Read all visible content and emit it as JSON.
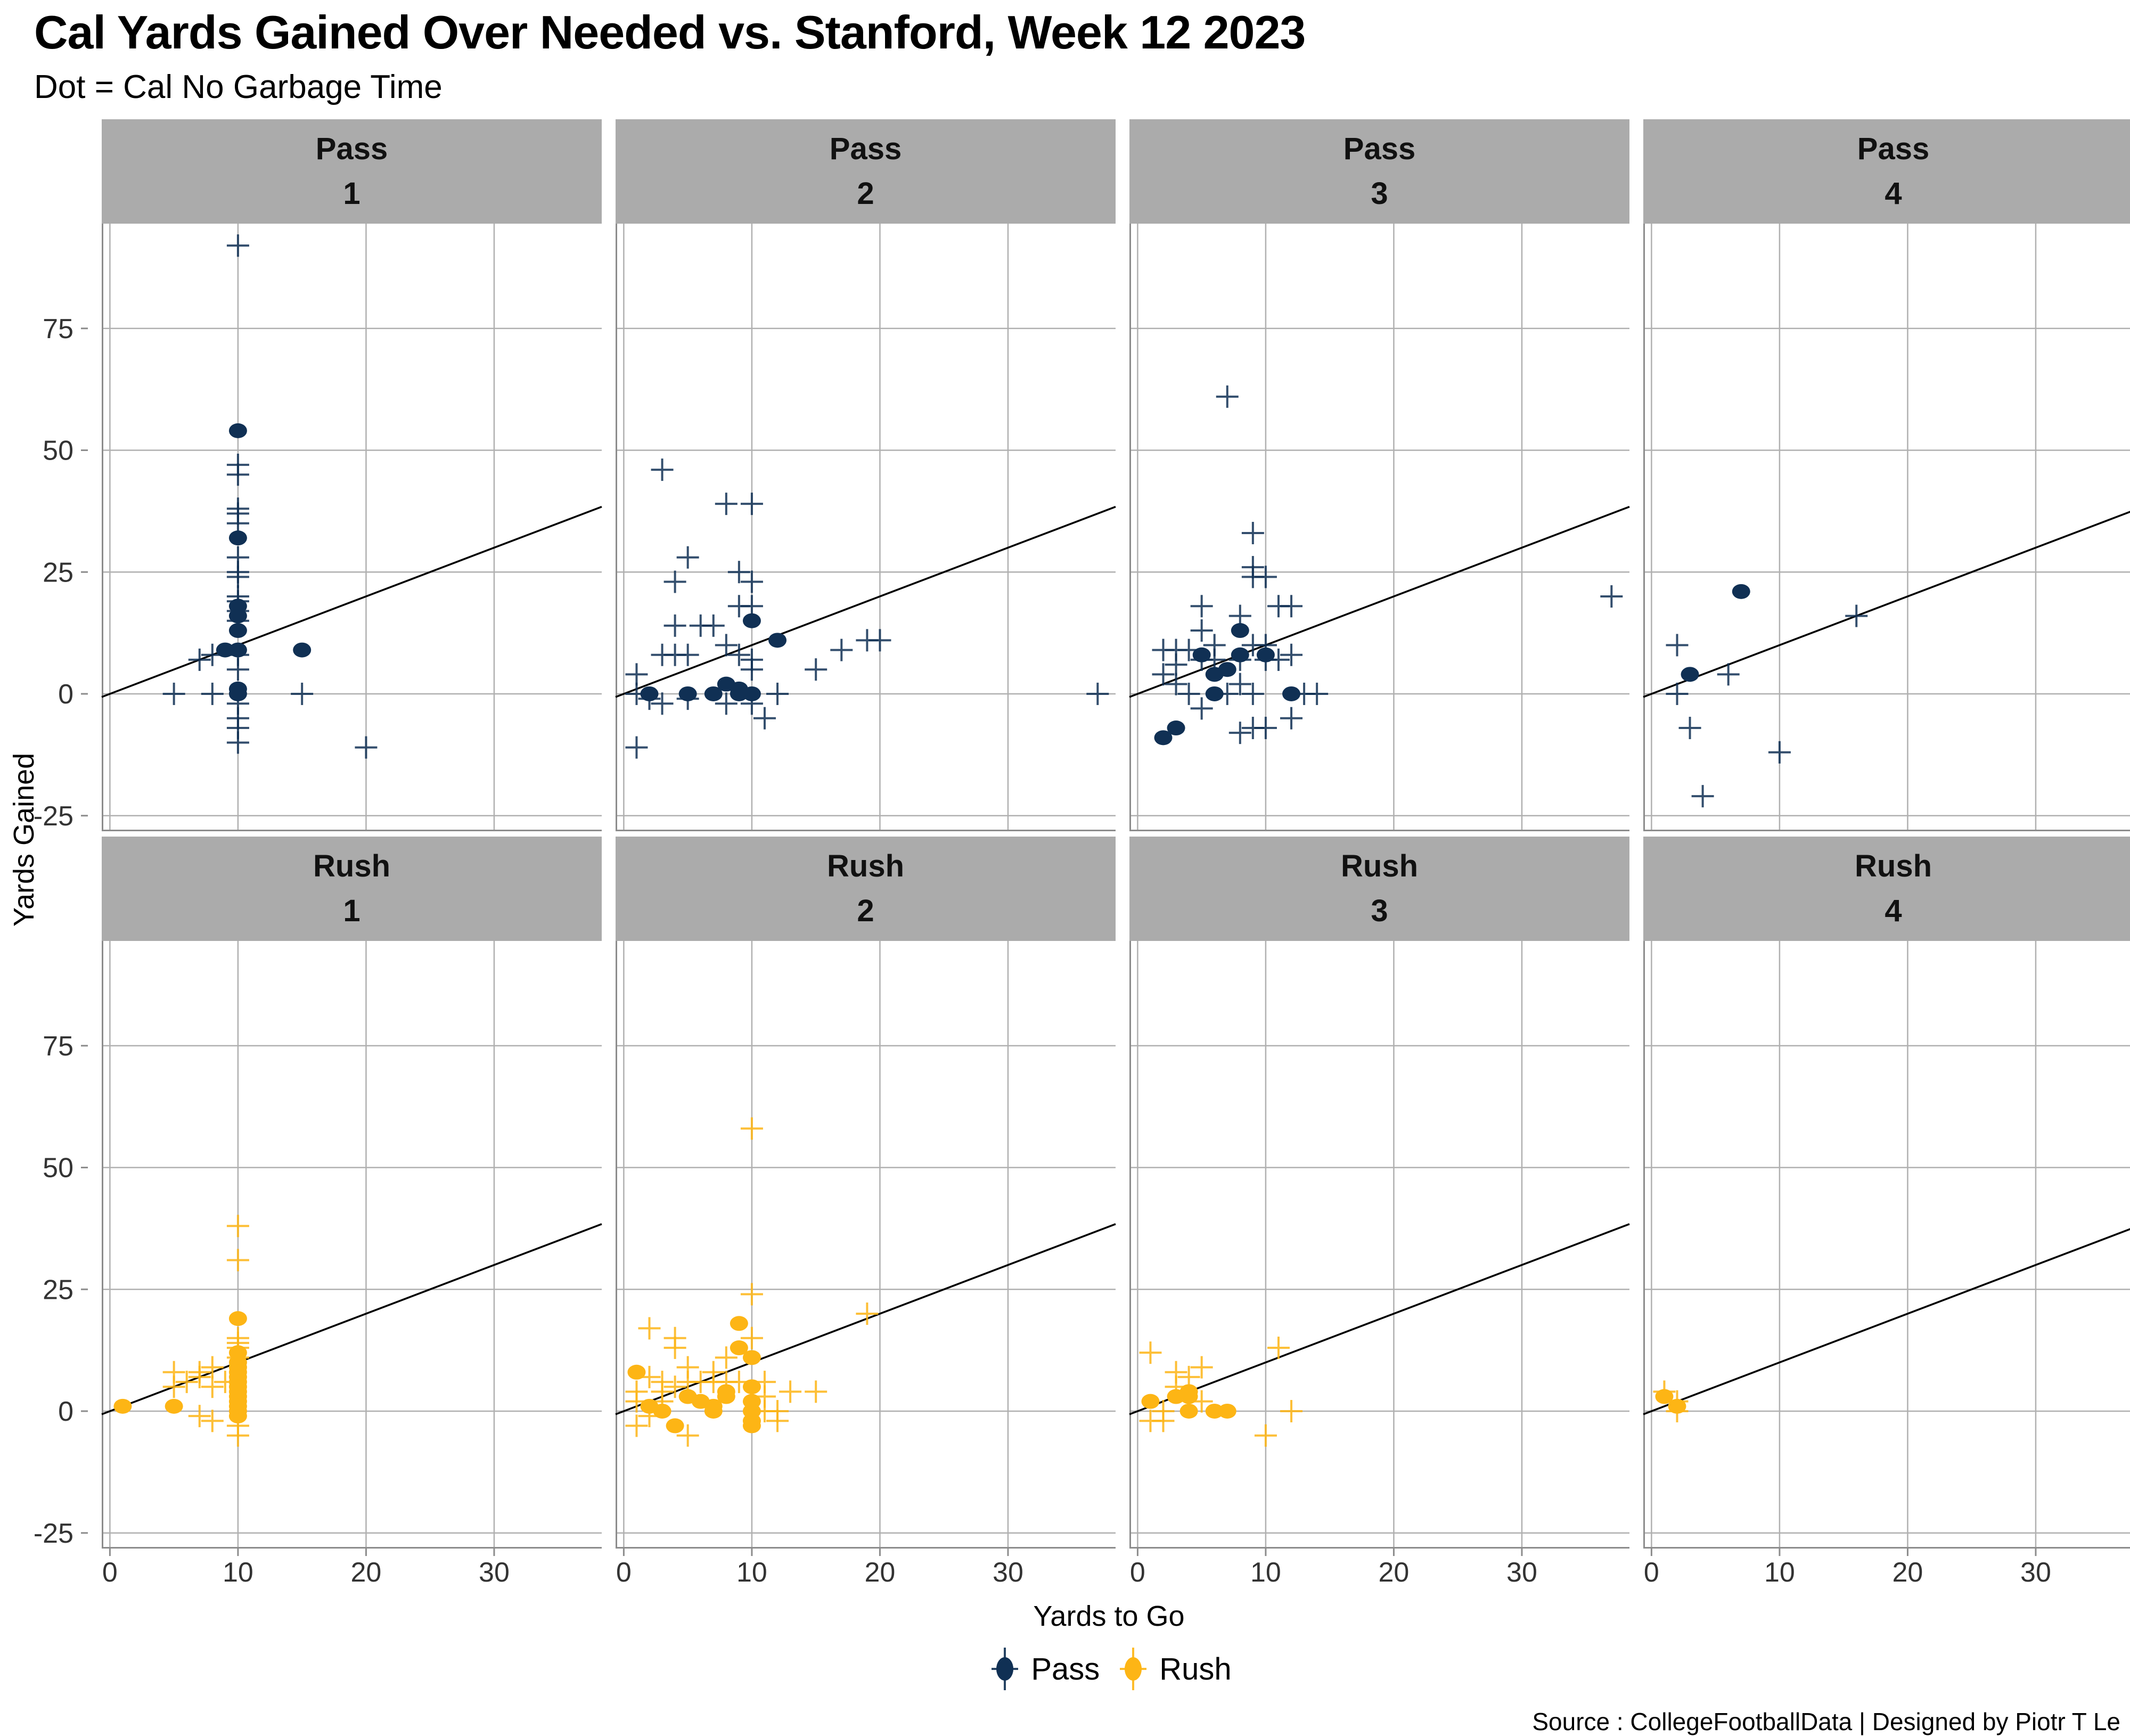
{
  "header": {
    "title": "Cal Yards Gained Over Needed vs. Stanford, Week 12 2023",
    "subtitle": "Dot = Cal No Garbage Time"
  },
  "source_credit": "Source : CollegeFootballData | Designed by Piotr T Le",
  "legend": {
    "items": [
      {
        "label": "Pass",
        "color": "#103054"
      },
      {
        "label": "Rush",
        "color": "#FDB515"
      }
    ]
  },
  "colors": {
    "pass": "#103054",
    "rush": "#FDB515",
    "strip_bg": "#ABABAB",
    "grid": "#B0B0B0",
    "axis_line": "#8C8C8C",
    "reference_line": "#000000",
    "tick_label": "#333333"
  },
  "chart_data": {
    "type": "scatter",
    "title": "Cal Yards Gained Over Needed vs. Stanford, Week 12 2023",
    "subtitle": "Dot = Cal No Garbage Time",
    "xlabel": "Yards to Go",
    "ylabel": "Yards Gained",
    "x_ticks": [
      0,
      10,
      20,
      30
    ],
    "y_ticks": [
      -25,
      0,
      25,
      50,
      75
    ],
    "xlim": [
      -0.64,
      38.4
    ],
    "ylim": [
      -28.2,
      96.5
    ],
    "grid": true,
    "legend_position": "bottom",
    "reference_line": "y = x (yards gained = yards to go)",
    "marker_note": "filled dot = Cal no-garbage-time play, cross = other play",
    "facet_rows": [
      "Pass",
      "Rush"
    ],
    "facet_cols": [
      "1",
      "2",
      "3",
      "4"
    ],
    "facets": [
      {
        "row": "Pass",
        "col": "1",
        "dots": [
          [
            10,
            54
          ],
          [
            10,
            32
          ],
          [
            10,
            18
          ],
          [
            10,
            16
          ],
          [
            10,
            13
          ],
          [
            9,
            9
          ],
          [
            10,
            9
          ],
          [
            15,
            9
          ],
          [
            10,
            1
          ],
          [
            10,
            0
          ]
        ],
        "crosses": [
          [
            10,
            92
          ],
          [
            10,
            47
          ],
          [
            10,
            45
          ],
          [
            10,
            38
          ],
          [
            10,
            37
          ],
          [
            10,
            35
          ],
          [
            10,
            28
          ],
          [
            10,
            25
          ],
          [
            10,
            24
          ],
          [
            10,
            20
          ],
          [
            10,
            19
          ],
          [
            10,
            17
          ],
          [
            10,
            15
          ],
          [
            7,
            7
          ],
          [
            8,
            8
          ],
          [
            10,
            8
          ],
          [
            10,
            5
          ],
          [
            5,
            0
          ],
          [
            8,
            0
          ],
          [
            10,
            -2
          ],
          [
            15,
            0
          ],
          [
            10,
            -5
          ],
          [
            10,
            -7
          ],
          [
            10,
            -10
          ],
          [
            20,
            -11
          ]
        ]
      },
      {
        "row": "Pass",
        "col": "2",
        "dots": [
          [
            10,
            15
          ],
          [
            12,
            11
          ],
          [
            8,
            2
          ],
          [
            9,
            1
          ],
          [
            2,
            0
          ],
          [
            5,
            0
          ],
          [
            7,
            0
          ],
          [
            9,
            0
          ],
          [
            10,
            0
          ]
        ],
        "crosses": [
          [
            3,
            46
          ],
          [
            8,
            39
          ],
          [
            10,
            39
          ],
          [
            5,
            28
          ],
          [
            9,
            25
          ],
          [
            4,
            23
          ],
          [
            10,
            23
          ],
          [
            9,
            18
          ],
          [
            10,
            18
          ],
          [
            4,
            14
          ],
          [
            6,
            14
          ],
          [
            7,
            14
          ],
          [
            8,
            10
          ],
          [
            3,
            8
          ],
          [
            4,
            8
          ],
          [
            5,
            8
          ],
          [
            9,
            8
          ],
          [
            10,
            7
          ],
          [
            10,
            5
          ],
          [
            1,
            4
          ],
          [
            15,
            5
          ],
          [
            17,
            9
          ],
          [
            19,
            11
          ],
          [
            20,
            11
          ],
          [
            1,
            0
          ],
          [
            2,
            -1
          ],
          [
            3,
            -2
          ],
          [
            5,
            -1
          ],
          [
            8,
            -2
          ],
          [
            10,
            -2
          ],
          [
            11,
            -5
          ],
          [
            12,
            0
          ],
          [
            37,
            0
          ],
          [
            1,
            -11
          ]
        ]
      },
      {
        "row": "Pass",
        "col": "3",
        "dots": [
          [
            8,
            13
          ],
          [
            5,
            8
          ],
          [
            8,
            8
          ],
          [
            10,
            8
          ],
          [
            7,
            5
          ],
          [
            6,
            4
          ],
          [
            6,
            0
          ],
          [
            12,
            0
          ],
          [
            3,
            -7
          ],
          [
            2,
            -9
          ]
        ],
        "crosses": [
          [
            7,
            61
          ],
          [
            9,
            33
          ],
          [
            9,
            26
          ],
          [
            9,
            24
          ],
          [
            10,
            24
          ],
          [
            5,
            18
          ],
          [
            11,
            18
          ],
          [
            12,
            18
          ],
          [
            8,
            16
          ],
          [
            5,
            13
          ],
          [
            2,
            9
          ],
          [
            3,
            9
          ],
          [
            4,
            9
          ],
          [
            6,
            10
          ],
          [
            9,
            10
          ],
          [
            10,
            10
          ],
          [
            2,
            4
          ],
          [
            3,
            6
          ],
          [
            5,
            7
          ],
          [
            6,
            7
          ],
          [
            8,
            7
          ],
          [
            10,
            7
          ],
          [
            11,
            7
          ],
          [
            12,
            8
          ],
          [
            3,
            2
          ],
          [
            8,
            2
          ],
          [
            4,
            0
          ],
          [
            7,
            0
          ],
          [
            9,
            0
          ],
          [
            13,
            0
          ],
          [
            14,
            0
          ],
          [
            5,
            -3
          ],
          [
            12,
            -5
          ],
          [
            8,
            -8
          ],
          [
            9,
            -7
          ],
          [
            10,
            -7
          ],
          [
            37,
            20
          ]
        ]
      },
      {
        "row": "Pass",
        "col": "4",
        "dots": [
          [
            7,
            21
          ],
          [
            3,
            4
          ]
        ],
        "crosses": [
          [
            2,
            10
          ],
          [
            6,
            4
          ],
          [
            16,
            16
          ],
          [
            2,
            0
          ],
          [
            3,
            -7
          ],
          [
            10,
            -12
          ],
          [
            4,
            -21
          ]
        ]
      },
      {
        "row": "Rush",
        "col": "1",
        "dots": [
          [
            1,
            1
          ],
          [
            5,
            1
          ],
          [
            10,
            19
          ],
          [
            10,
            12
          ],
          [
            10,
            10
          ],
          [
            10,
            9
          ],
          [
            10,
            8
          ],
          [
            10,
            7
          ],
          [
            10,
            6
          ],
          [
            10,
            5
          ],
          [
            10,
            4
          ],
          [
            10,
            3
          ],
          [
            10,
            2
          ],
          [
            10,
            1
          ],
          [
            10,
            0
          ],
          [
            10,
            -1
          ]
        ],
        "crosses": [
          [
            10,
            38
          ],
          [
            10,
            31
          ],
          [
            10,
            15
          ],
          [
            10,
            14
          ],
          [
            10,
            13
          ],
          [
            10,
            11
          ],
          [
            5,
            8
          ],
          [
            5,
            5
          ],
          [
            6,
            6
          ],
          [
            7,
            8
          ],
          [
            7,
            7
          ],
          [
            8,
            9
          ],
          [
            8,
            5
          ],
          [
            9,
            6
          ],
          [
            7,
            -1
          ],
          [
            8,
            -2
          ],
          [
            10,
            -3
          ],
          [
            10,
            -5
          ]
        ]
      },
      {
        "row": "Rush",
        "col": "2",
        "dots": [
          [
            1,
            8
          ],
          [
            2,
            1
          ],
          [
            3,
            0
          ],
          [
            4,
            -3
          ],
          [
            5,
            3
          ],
          [
            6,
            2
          ],
          [
            7,
            1
          ],
          [
            7,
            0
          ],
          [
            8,
            4
          ],
          [
            8,
            3
          ],
          [
            9,
            18
          ],
          [
            9,
            13
          ],
          [
            10,
            11
          ],
          [
            10,
            5
          ],
          [
            10,
            2
          ],
          [
            10,
            0
          ],
          [
            10,
            -2
          ],
          [
            10,
            -3
          ]
        ],
        "crosses": [
          [
            10,
            58
          ],
          [
            10,
            24
          ],
          [
            19,
            20
          ],
          [
            2,
            17
          ],
          [
            4,
            15
          ],
          [
            4,
            13
          ],
          [
            10,
            15
          ],
          [
            8,
            11
          ],
          [
            5,
            9
          ],
          [
            2,
            7
          ],
          [
            3,
            6
          ],
          [
            4,
            5
          ],
          [
            5,
            6
          ],
          [
            6,
            6
          ],
          [
            7,
            8
          ],
          [
            7,
            6
          ],
          [
            8,
            6
          ],
          [
            9,
            6
          ],
          [
            1,
            4
          ],
          [
            3,
            4
          ],
          [
            1,
            2
          ],
          [
            3,
            2
          ],
          [
            11,
            6
          ],
          [
            11,
            3
          ],
          [
            13,
            4
          ],
          [
            15,
            4
          ],
          [
            11,
            0
          ],
          [
            12,
            0
          ],
          [
            2,
            -1
          ],
          [
            1,
            -3
          ],
          [
            12,
            -2
          ],
          [
            5,
            -5
          ]
        ]
      },
      {
        "row": "Rush",
        "col": "3",
        "dots": [
          [
            1,
            2
          ],
          [
            3,
            3
          ],
          [
            4,
            4
          ],
          [
            4,
            3
          ],
          [
            4,
            0
          ],
          [
            6,
            0
          ],
          [
            7,
            0
          ]
        ],
        "crosses": [
          [
            1,
            12
          ],
          [
            3,
            8
          ],
          [
            5,
            9
          ],
          [
            4,
            7
          ],
          [
            3,
            5
          ],
          [
            5,
            2
          ],
          [
            2,
            0
          ],
          [
            1,
            -2
          ],
          [
            2,
            -2
          ],
          [
            11,
            13
          ],
          [
            12,
            0
          ],
          [
            10,
            -5
          ]
        ]
      },
      {
        "row": "Rush",
        "col": "4",
        "dots": [
          [
            1,
            3
          ],
          [
            2,
            1
          ]
        ],
        "crosses": [
          [
            1,
            4
          ],
          [
            2,
            2
          ],
          [
            2,
            0
          ]
        ]
      }
    ]
  }
}
